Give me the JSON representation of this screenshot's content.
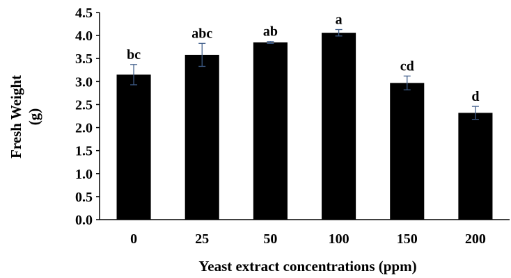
{
  "chart_data": {
    "type": "bar",
    "title": "",
    "xlabel": "Yeast extract concentrations (ppm)",
    "ylabel_line1": "Fresh Weight",
    "ylabel_line2": "(g)",
    "categories": [
      "0",
      "25",
      "50",
      "100",
      "150",
      "200"
    ],
    "values": [
      3.15,
      3.58,
      3.85,
      4.06,
      2.97,
      2.32
    ],
    "errors": [
      0.22,
      0.25,
      0.02,
      0.07,
      0.15,
      0.14
    ],
    "significance": [
      "bc",
      "abc",
      "ab",
      "a",
      "cd",
      "d"
    ],
    "ylim": [
      0,
      4.5
    ],
    "yticks": [
      "0.0",
      "0.5",
      "1.0",
      "1.5",
      "2.0",
      "2.5",
      "3.0",
      "3.5",
      "4.0",
      "4.5"
    ],
    "grid": false,
    "legend": "none",
    "colors": {
      "bar": "#000000",
      "error_bar": "#3f5d8a",
      "axis": "#000000"
    }
  }
}
